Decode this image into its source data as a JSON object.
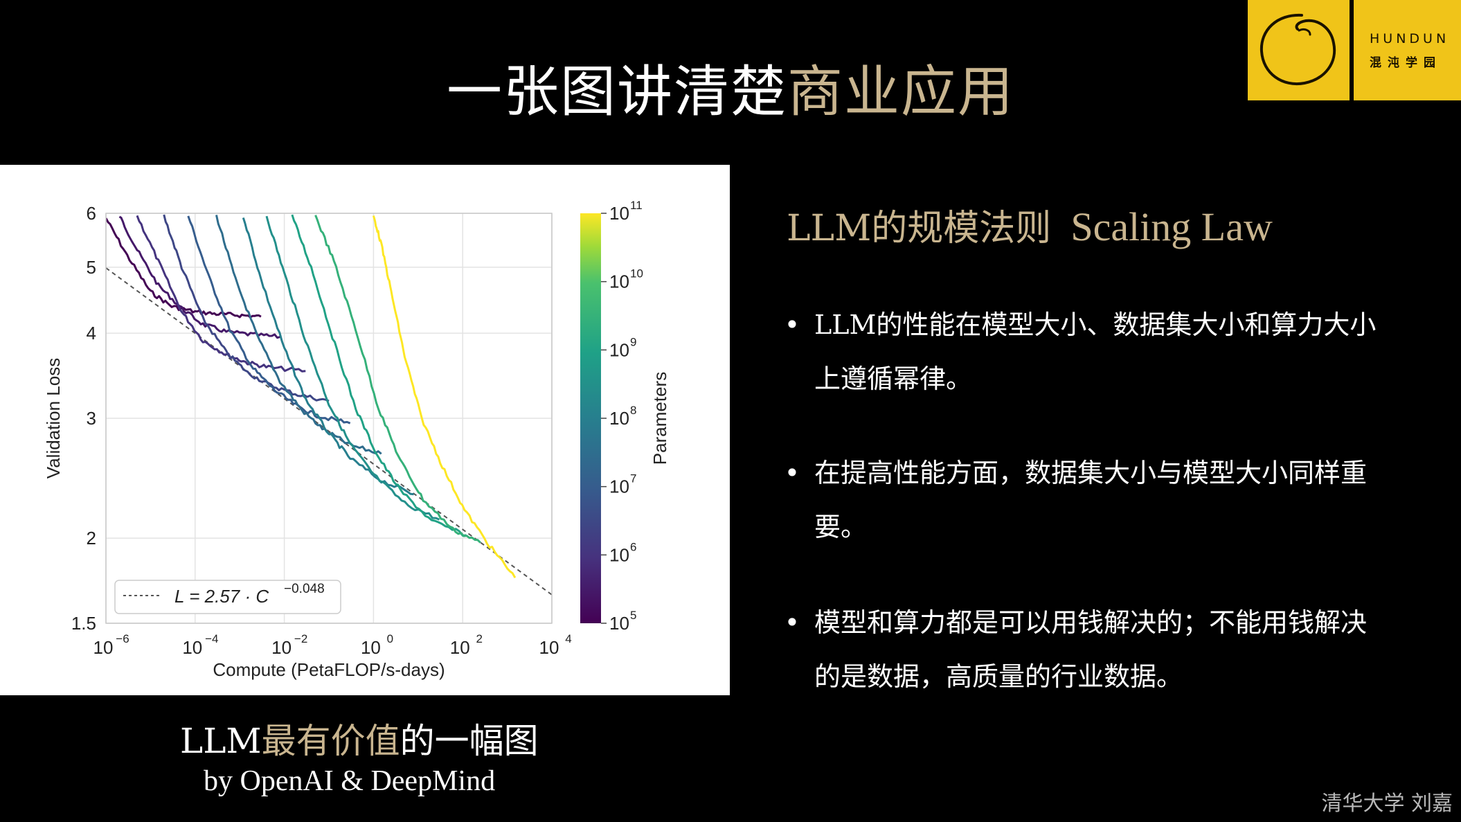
{
  "header": {
    "title_main": "一张图讲清楚",
    "title_accent": "商业应用",
    "logo_en": "HUNDUN",
    "logo_cn": "混沌学园"
  },
  "chart_data": {
    "type": "line",
    "xlabel": "Compute (PetaFLOP/s-days)",
    "ylabel": "Validation Loss",
    "xscale": "log",
    "yscale": "log",
    "xlim": [
      1e-06,
      10000
    ],
    "ylim": [
      1.5,
      6
    ],
    "x_ticks": [
      1e-06,
      0.0001,
      0.01,
      1,
      100,
      10000
    ],
    "x_tick_labels": [
      {
        "base": "10",
        "exp": "−6"
      },
      {
        "base": "10",
        "exp": "−4"
      },
      {
        "base": "10",
        "exp": "−2"
      },
      {
        "base": "10",
        "exp": "0"
      },
      {
        "base": "10",
        "exp": "2"
      },
      {
        "base": "10",
        "exp": "4"
      }
    ],
    "y_ticks": [
      1.5,
      2,
      3,
      4,
      5,
      6
    ],
    "y_tick_labels": [
      "1.5",
      "2",
      "3",
      "4",
      "5",
      "6"
    ],
    "grid": true,
    "legend": {
      "position": "bottom-left",
      "label": "L = 2.57 · C",
      "exponent": "−0.048"
    },
    "fit_line": {
      "coefficient": 2.57,
      "exponent": -0.048
    },
    "colorbar": {
      "label": "Parameters",
      "range": [
        100000,
        100000000000
      ],
      "ticks": [
        {
          "base": "10",
          "exp": "11"
        },
        {
          "base": "10",
          "exp": "10"
        },
        {
          "base": "10",
          "exp": "9"
        },
        {
          "base": "10",
          "exp": "8"
        },
        {
          "base": "10",
          "exp": "7"
        },
        {
          "base": "10",
          "exp": "6"
        },
        {
          "base": "10",
          "exp": "5"
        }
      ]
    },
    "series": [
      {
        "params": 100000,
        "x": [
          1e-06,
          3e-06,
          1e-05,
          3e-05,
          0.0001,
          0.0003,
          0.001,
          0.003
        ],
        "y": [
          5.9,
          5.2,
          4.6,
          4.38,
          4.3,
          4.27,
          4.25,
          4.23
        ]
      },
      {
        "params": 300000,
        "x": [
          2e-06,
          5e-06,
          1.5e-05,
          5e-05,
          0.00015,
          0.0005,
          0.002,
          0.008
        ],
        "y": [
          5.95,
          5.3,
          4.7,
          4.35,
          4.12,
          4.02,
          3.98,
          3.95
        ]
      },
      {
        "params": 1000000,
        "x": [
          5e-06,
          1.5e-05,
          5e-05,
          0.00015,
          0.0005,
          0.0015,
          0.005,
          0.03
        ],
        "y": [
          5.95,
          5.1,
          4.3,
          3.9,
          3.72,
          3.62,
          3.56,
          3.52
        ]
      },
      {
        "params": 3000000,
        "x": [
          2e-05,
          5e-05,
          0.00015,
          0.0005,
          0.0015,
          0.005,
          0.02,
          0.1
        ],
        "y": [
          5.95,
          5.0,
          4.2,
          3.75,
          3.5,
          3.35,
          3.25,
          3.18
        ]
      },
      {
        "params": 10000000,
        "x": [
          7e-05,
          0.0002,
          0.0006,
          0.002,
          0.006,
          0.02,
          0.06,
          0.3
        ],
        "y": [
          5.95,
          4.85,
          4.05,
          3.55,
          3.3,
          3.12,
          3.02,
          2.95
        ]
      },
      {
        "params": 30000000,
        "x": [
          0.0003,
          0.0008,
          0.0025,
          0.008,
          0.025,
          0.08,
          0.3,
          1.5
        ],
        "y": [
          5.95,
          4.8,
          3.95,
          3.4,
          3.08,
          2.88,
          2.74,
          2.66
        ]
      },
      {
        "params": 100000000,
        "x": [
          0.0012,
          0.003,
          0.01,
          0.03,
          0.1,
          0.3,
          1.5,
          8
        ],
        "y": [
          5.95,
          4.8,
          3.8,
          3.2,
          2.85,
          2.62,
          2.43,
          2.32
        ]
      },
      {
        "params": 300000000,
        "x": [
          0.004,
          0.01,
          0.03,
          0.1,
          0.3,
          1,
          5,
          30
        ],
        "y": [
          5.95,
          4.9,
          3.9,
          3.15,
          2.75,
          2.48,
          2.25,
          2.13
        ]
      },
      {
        "params": 1000000000,
        "x": [
          0.015,
          0.04,
          0.12,
          0.4,
          1.2,
          4,
          20,
          120
        ],
        "y": [
          5.95,
          5.0,
          3.95,
          3.1,
          2.65,
          2.35,
          2.12,
          2.02
        ]
      },
      {
        "params": 3000000000,
        "x": [
          0.05,
          0.13,
          0.4,
          1.3,
          4,
          13,
          60,
          250
        ],
        "y": [
          5.95,
          5.1,
          4.05,
          3.1,
          2.6,
          2.28,
          2.06,
          1.97
        ]
      },
      {
        "params": 175000000000,
        "x": [
          1,
          1.5,
          2.5,
          5,
          12,
          35,
          110,
          400,
          1500
        ],
        "y": [
          5.95,
          5.4,
          4.6,
          3.7,
          3.0,
          2.55,
          2.2,
          1.95,
          1.75
        ]
      }
    ]
  },
  "captions": {
    "line1_prefix": "LLM",
    "line1_accent": "最有价值",
    "line1_suffix": "的一幅图",
    "line2": "by OpenAI & DeepMind"
  },
  "section": {
    "title_cn": "LLM的规模法则",
    "title_en": "Scaling Law"
  },
  "bullets": [
    {
      "symbol": "•",
      "text": "LLM的性能在模型大小、数据集大小和算力大小上遵循幂律。"
    },
    {
      "symbol": "•",
      "text": "在提高性能方面，数据集大小与模型大小同样重要。"
    },
    {
      "symbol": "•",
      "text": "模型和算力都是可以用钱解决的；不能用钱解决的是数据，高质量的行业数据。"
    }
  ],
  "footer": {
    "credit": "清华大学 刘嘉"
  }
}
